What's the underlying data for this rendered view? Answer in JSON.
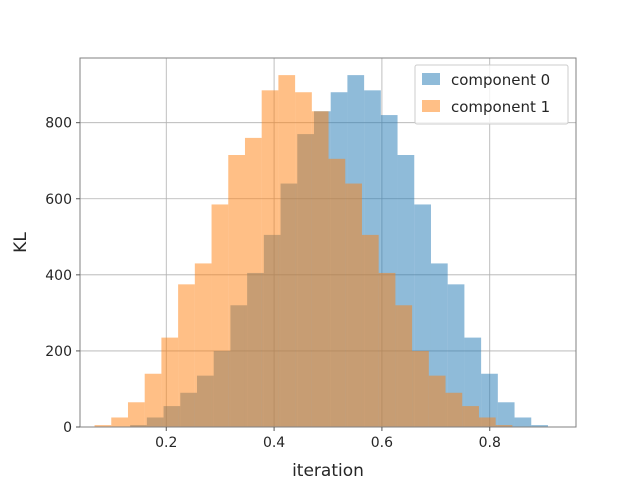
{
  "chart_data": {
    "type": "bar",
    "subtype": "overlapping-histogram",
    "xlabel": "iteration",
    "ylabel": "KL",
    "xlim": [
      0.04,
      0.96
    ],
    "ylim": [
      0,
      970
    ],
    "x_ticks": [
      0.2,
      0.4,
      0.6,
      0.8
    ],
    "y_ticks": [
      0,
      200,
      400,
      600,
      800
    ],
    "grid": true,
    "legend_position": "top-right",
    "series": [
      {
        "name": "component 0",
        "color": "#1f77b4",
        "opacity": 0.5,
        "bins": [
          [
            0.133,
            0.164,
            5
          ],
          [
            0.164,
            0.195,
            25
          ],
          [
            0.195,
            0.226,
            55
          ],
          [
            0.226,
            0.257,
            90
          ],
          [
            0.257,
            0.288,
            135
          ],
          [
            0.288,
            0.319,
            200
          ],
          [
            0.319,
            0.35,
            320
          ],
          [
            0.35,
            0.381,
            405
          ],
          [
            0.381,
            0.412,
            505
          ],
          [
            0.412,
            0.443,
            640
          ],
          [
            0.443,
            0.474,
            770
          ],
          [
            0.474,
            0.505,
            830
          ],
          [
            0.505,
            0.536,
            880
          ],
          [
            0.536,
            0.567,
            925
          ],
          [
            0.567,
            0.598,
            885
          ],
          [
            0.598,
            0.629,
            820
          ],
          [
            0.629,
            0.66,
            715
          ],
          [
            0.66,
            0.691,
            585
          ],
          [
            0.691,
            0.722,
            430
          ],
          [
            0.722,
            0.753,
            375
          ],
          [
            0.753,
            0.784,
            235
          ],
          [
            0.784,
            0.815,
            140
          ],
          [
            0.815,
            0.846,
            65
          ],
          [
            0.846,
            0.877,
            25
          ],
          [
            0.877,
            0.908,
            5
          ]
        ]
      },
      {
        "name": "component 1",
        "color": "#ff7f0e",
        "opacity": 0.5,
        "bins": [
          [
            0.067,
            0.098,
            5
          ],
          [
            0.098,
            0.129,
            25
          ],
          [
            0.129,
            0.16,
            65
          ],
          [
            0.16,
            0.191,
            140
          ],
          [
            0.191,
            0.222,
            235
          ],
          [
            0.222,
            0.253,
            375
          ],
          [
            0.253,
            0.284,
            430
          ],
          [
            0.284,
            0.315,
            585
          ],
          [
            0.315,
            0.346,
            715
          ],
          [
            0.346,
            0.377,
            760
          ],
          [
            0.377,
            0.408,
            885
          ],
          [
            0.408,
            0.439,
            925
          ],
          [
            0.439,
            0.47,
            880
          ],
          [
            0.47,
            0.501,
            830
          ],
          [
            0.501,
            0.532,
            705
          ],
          [
            0.532,
            0.563,
            640
          ],
          [
            0.563,
            0.594,
            505
          ],
          [
            0.594,
            0.625,
            405
          ],
          [
            0.625,
            0.656,
            320
          ],
          [
            0.656,
            0.687,
            200
          ],
          [
            0.687,
            0.718,
            135
          ],
          [
            0.718,
            0.749,
            90
          ],
          [
            0.749,
            0.78,
            55
          ],
          [
            0.78,
            0.811,
            25
          ],
          [
            0.811,
            0.842,
            5
          ]
        ]
      }
    ]
  }
}
